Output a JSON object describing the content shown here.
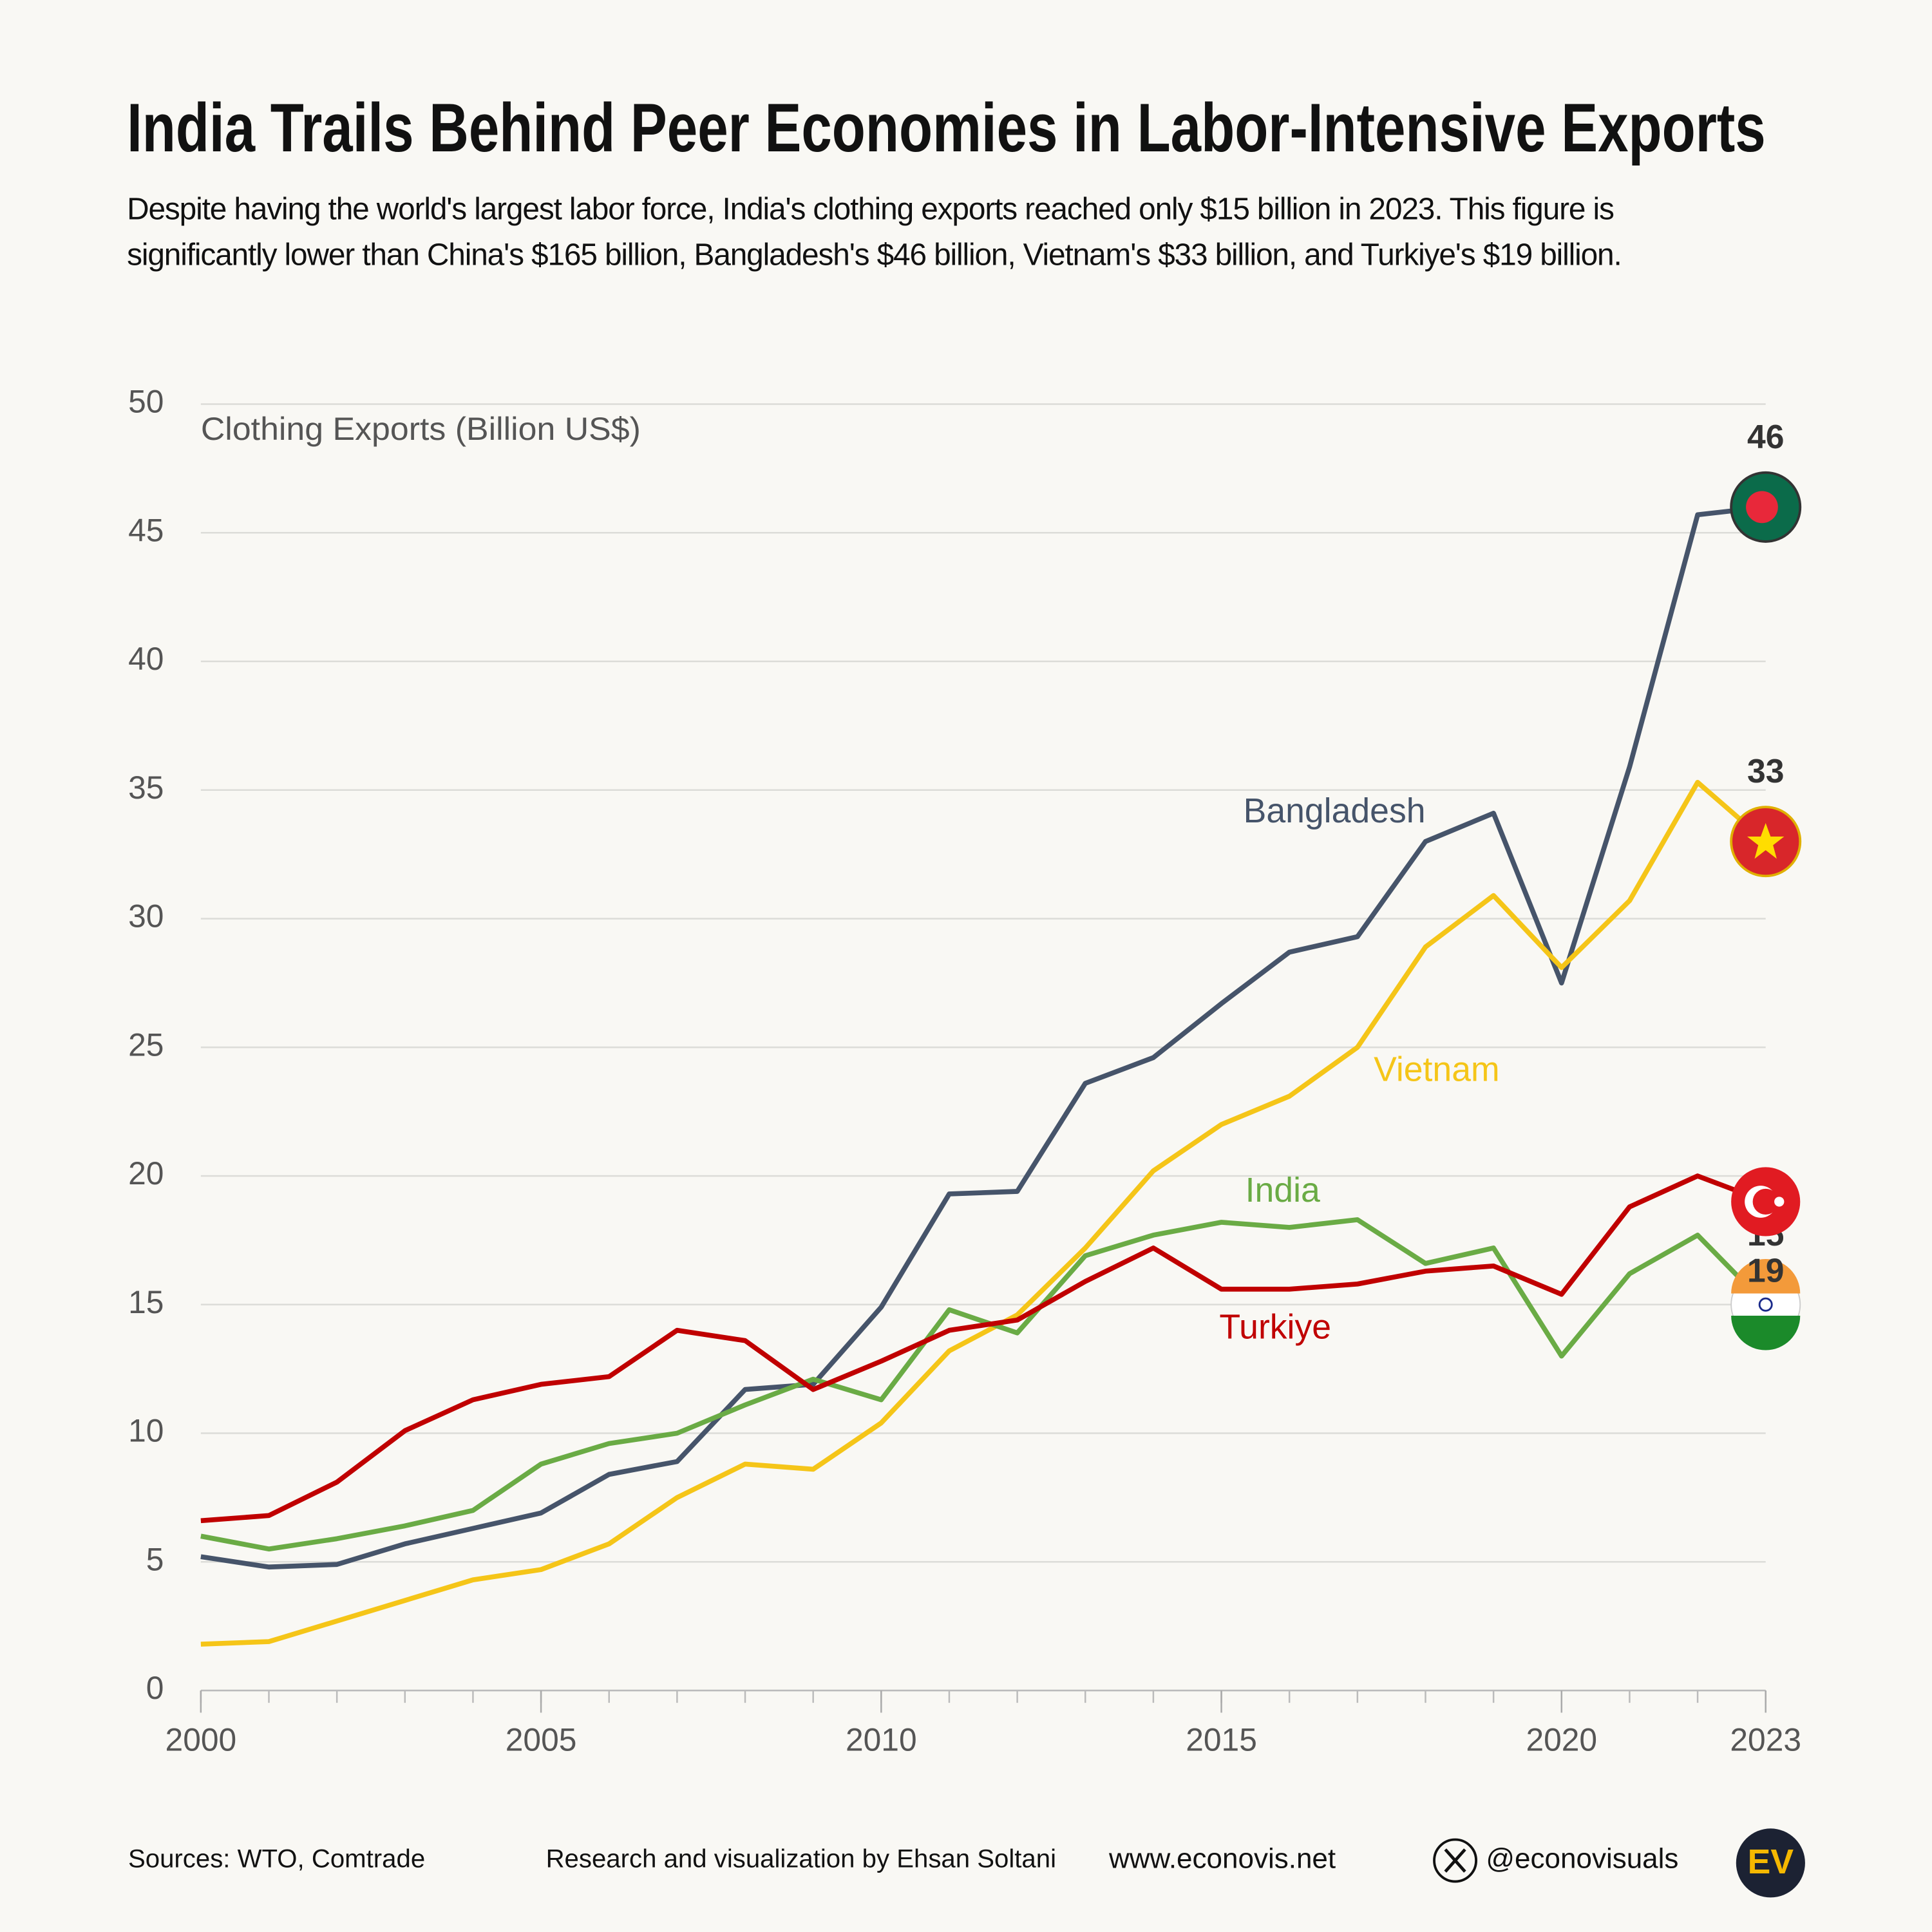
{
  "chart_data": {
    "type": "line",
    "title": "India Trails Behind Peer Economies in Labor-Intensive Exports",
    "subtitle": "Despite having the world's largest labor force, India's clothing exports reached only $15 billion in 2023. This figure is significantly lower than China's $165 billion, Bangladesh's $46 billion, Vietnam's $33 billion, and Turkiye's $19 billion.",
    "y_label": "Clothing Exports (Billion US$)",
    "x": [
      2000,
      2001,
      2002,
      2003,
      2004,
      2005,
      2006,
      2007,
      2008,
      2009,
      2010,
      2011,
      2012,
      2013,
      2014,
      2015,
      2016,
      2017,
      2018,
      2019,
      2020,
      2021,
      2022,
      2023
    ],
    "xlim": [
      2000,
      2023
    ],
    "xticks": [
      2000,
      2005,
      2010,
      2015,
      2020,
      2023
    ],
    "ylim": [
      0,
      50
    ],
    "yticks": [
      0,
      5,
      10,
      15,
      20,
      25,
      30,
      35,
      40,
      45,
      50
    ],
    "grid": true,
    "series": [
      {
        "name": "Bangladesh",
        "color": "#46546a",
        "values": [
          5.2,
          4.8,
          4.9,
          5.7,
          6.3,
          6.9,
          8.4,
          8.9,
          11.7,
          11.9,
          14.9,
          19.3,
          19.4,
          23.6,
          24.6,
          26.7,
          28.7,
          29.3,
          33.0,
          34.1,
          27.5,
          35.9,
          45.7,
          46
        ]
      },
      {
        "name": "Vietnam",
        "color": "#f5c518",
        "values": [
          1.8,
          1.9,
          2.7,
          3.5,
          4.3,
          4.7,
          5.7,
          7.5,
          8.8,
          8.6,
          10.4,
          13.2,
          14.6,
          17.2,
          20.2,
          22.0,
          23.1,
          25.0,
          28.9,
          30.9,
          28.1,
          30.7,
          35.3,
          33
        ]
      },
      {
        "name": "India",
        "color": "#6aab45",
        "values": [
          6.0,
          5.5,
          5.9,
          6.4,
          7.0,
          8.8,
          9.6,
          10.0,
          11.1,
          12.1,
          11.3,
          14.8,
          13.9,
          16.9,
          17.7,
          18.2,
          18.0,
          18.3,
          16.6,
          17.2,
          13.0,
          16.2,
          17.7,
          15
        ]
      },
      {
        "name": "Turkiye",
        "color": "#c00000",
        "values": [
          6.6,
          6.8,
          8.1,
          10.1,
          11.3,
          11.9,
          12.2,
          14.0,
          13.6,
          11.7,
          12.8,
          14.0,
          14.4,
          15.9,
          17.2,
          15.6,
          15.6,
          15.8,
          16.3,
          16.5,
          15.4,
          18.8,
          20.0,
          19
        ]
      }
    ],
    "footer": {
      "sources": "Sources: WTO, Comtrade",
      "credit": "Research and visualization by Ehsan Soltani",
      "website": "www.econovis.net",
      "handle": "@econovisuals",
      "logo": "EV"
    }
  }
}
